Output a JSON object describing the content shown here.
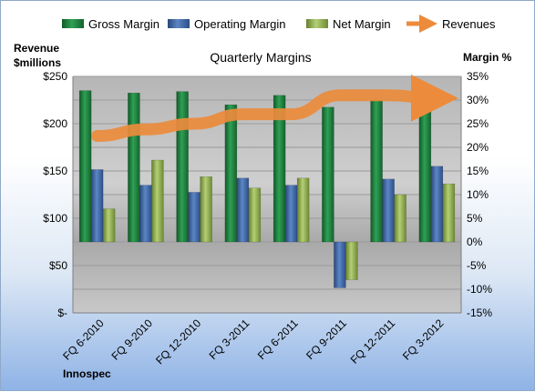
{
  "chart_data": {
    "type": "bar",
    "title": "Quarterly Margins",
    "company": "Innospec",
    "ylabel_left": [
      "Revenue",
      "$millions"
    ],
    "ylabel_right": "Margin %",
    "categories": [
      "FQ 6-2010",
      "FQ 9-2010",
      "FQ 12-2010",
      "FQ 3-2011",
      "FQ 6-2011",
      "FQ 9-2011",
      "FQ 12-2011",
      "FQ 3-2012"
    ],
    "left_ticks": [
      "$250",
      "$200",
      "$150",
      "$100",
      "$50",
      "$-"
    ],
    "right_ticks": [
      "35%",
      "30%",
      "25%",
      "20%",
      "15%",
      "10%",
      "5%",
      "0%",
      "-5%",
      "-10%",
      "-15%"
    ],
    "ylim_left": [
      0,
      250
    ],
    "ylim_right": [
      -15,
      35
    ],
    "series": [
      {
        "name": "Gross Margin",
        "axis": "right",
        "color": "#1a7a3a",
        "values": [
          32,
          31.5,
          31.8,
          29,
          31,
          28.5,
          30,
          32
        ]
      },
      {
        "name": "Operating Margin",
        "axis": "right",
        "color": "#3b66a8",
        "values": [
          15.3,
          12,
          10.5,
          13.5,
          12,
          -9.7,
          13.3,
          16
        ]
      },
      {
        "name": "Net Margin",
        "axis": "right",
        "color": "#8fae4c",
        "values": [
          7,
          17.3,
          13.8,
          11.4,
          13.5,
          -8,
          10,
          12.3
        ]
      },
      {
        "name": "Revenues",
        "axis": "left",
        "color": "#ec8b3c",
        "type": "line",
        "values": [
          187,
          194,
          200,
          210,
          210,
          230,
          230,
          227
        ]
      }
    ],
    "legend_position": "top"
  }
}
